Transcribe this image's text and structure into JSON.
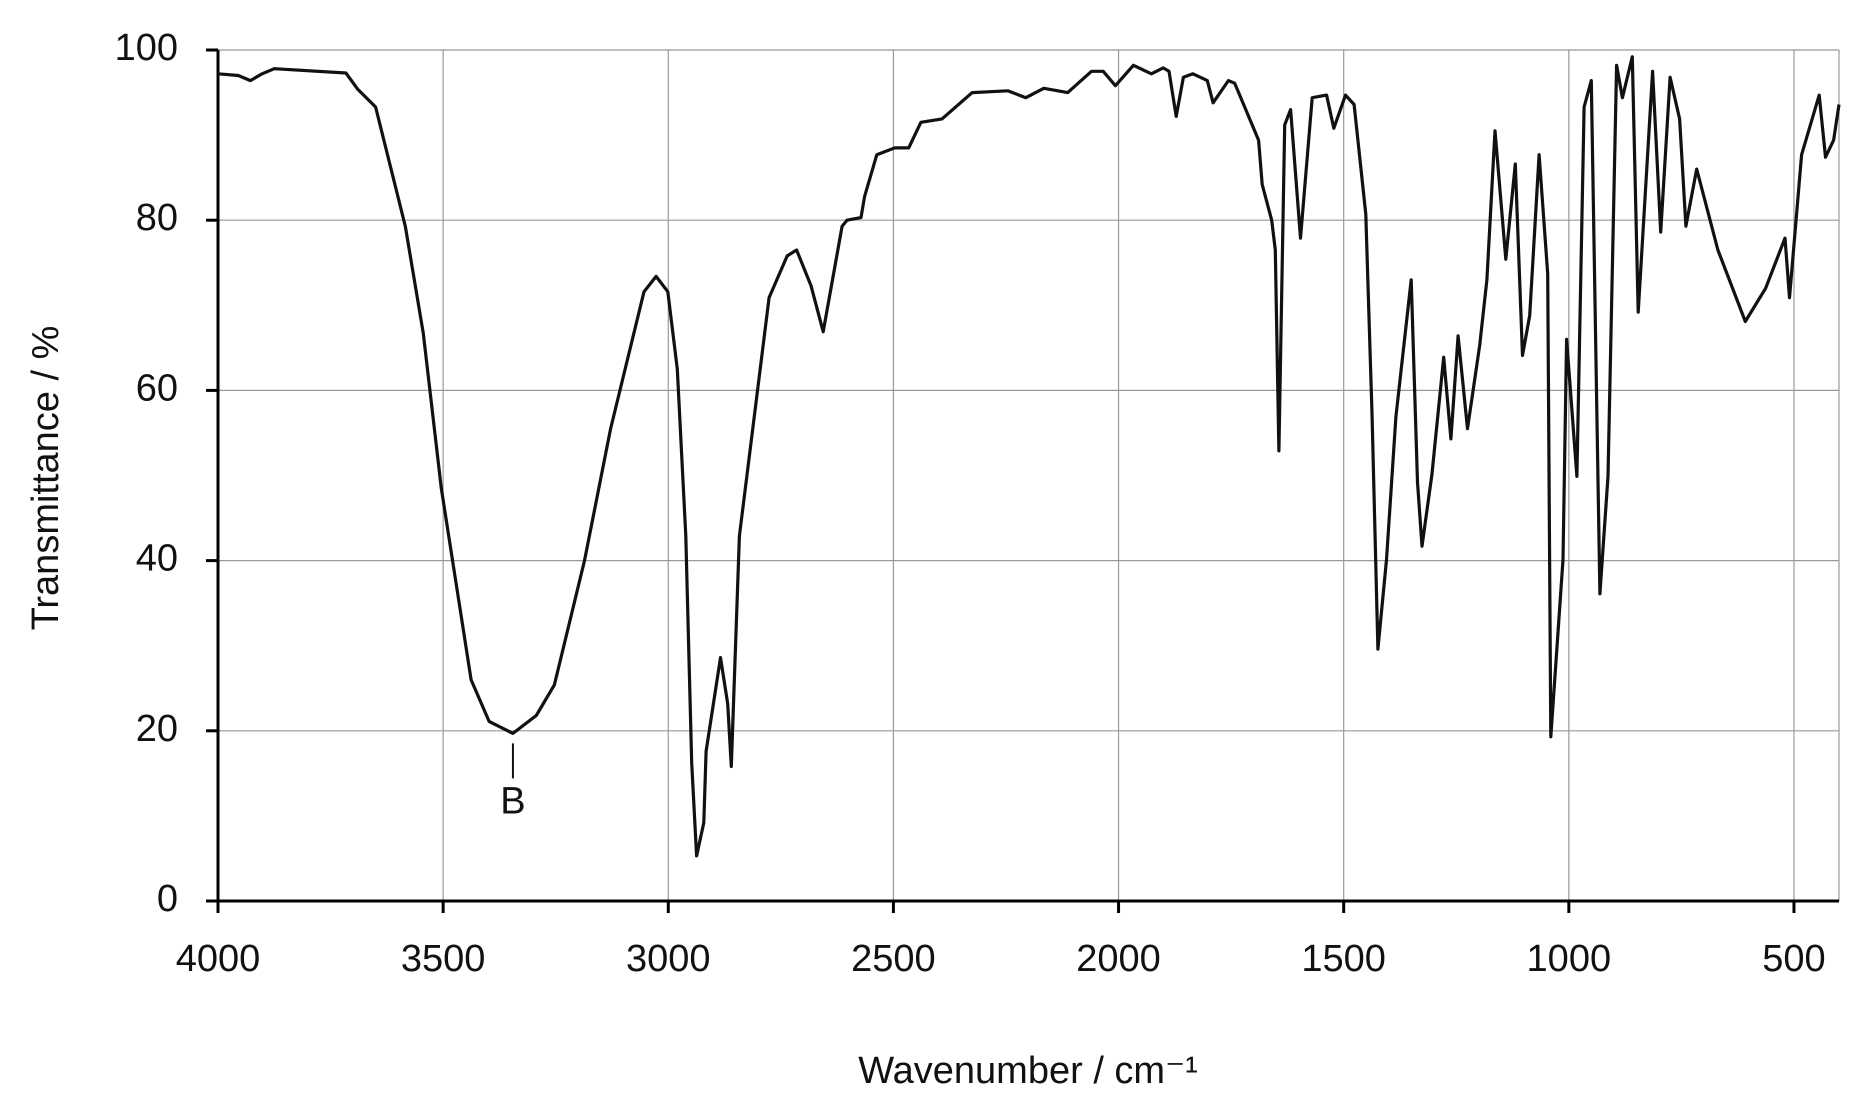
{
  "chart_data": {
    "type": "line",
    "x_label": "Wavenumber / cm⁻¹",
    "y_label": "Transmittance / %",
    "xlim": [
      4000,
      400
    ],
    "ylim": [
      0,
      100
    ],
    "xticks": [
      4000,
      3500,
      3000,
      2500,
      2000,
      1500,
      1000,
      500
    ],
    "yticks": [
      0,
      20,
      40,
      60,
      80,
      100
    ],
    "grid": true,
    "annotations": [
      {
        "text": "B",
        "x": 3345,
        "y": 19.7
      }
    ],
    "series": [
      {
        "name": null,
        "color": "#111111",
        "x": [
          4000,
          3955,
          3928,
          3902,
          3875,
          3716,
          3690,
          3650,
          3584,
          3544,
          3504,
          3438,
          3398,
          3345,
          3293,
          3253,
          3186,
          3128,
          3054,
          3027,
          3001,
          2980,
          2961,
          2948,
          2937,
          2921,
          2916,
          2884,
          2868,
          2860,
          2842,
          2776,
          2736,
          2715,
          2683,
          2656,
          2614,
          2603,
          2572,
          2564,
          2537,
          2497,
          2466,
          2439,
          2392,
          2325,
          2246,
          2206,
          2166,
          2113,
          2060,
          2034,
          2007,
          1967,
          1927,
          1901,
          1888,
          1872,
          1856,
          1835,
          1803,
          1790,
          1756,
          1742,
          1689,
          1681,
          1660,
          1652,
          1644,
          1631,
          1618,
          1596,
          1570,
          1538,
          1522,
          1496,
          1477,
          1451,
          1437,
          1424,
          1405,
          1384,
          1350,
          1336,
          1326,
          1304,
          1278,
          1262,
          1246,
          1225,
          1198,
          1182,
          1164,
          1140,
          1119,
          1103,
          1087,
          1066,
          1047,
          1040,
          1013,
          1005,
          982,
          966,
          950,
          931,
          913,
          894,
          881,
          859,
          846,
          814,
          796,
          775,
          754,
          740,
          716,
          669,
          608,
          563,
          520,
          510,
          483,
          444,
          430,
          412,
          400
        ],
        "values": [
          97.2,
          97,
          96.4,
          97.2,
          97.8,
          97.3,
          95.4,
          93.3,
          79.3,
          66.7,
          48.5,
          26,
          21.1,
          19.7,
          21.8,
          25.4,
          40,
          55.5,
          71.6,
          73.4,
          71.6,
          62.5,
          42.9,
          16.2,
          5.3,
          9.2,
          17.6,
          28.6,
          23.2,
          15.8,
          42.9,
          70.9,
          75.8,
          76.5,
          72.3,
          66.9,
          79.3,
          80,
          80.3,
          82.8,
          87.7,
          88.5,
          88.5,
          91.5,
          91.9,
          95,
          95.2,
          94.4,
          95.5,
          95,
          97.5,
          97.5,
          95.8,
          98.2,
          97.2,
          97.9,
          97.5,
          92.2,
          96.8,
          97.2,
          96.4,
          93.8,
          96.4,
          96.1,
          89.4,
          84.2,
          80,
          76.5,
          52.9,
          91.2,
          93,
          77.9,
          94.4,
          94.7,
          90.8,
          94.7,
          93.6,
          80.7,
          56.9,
          29.6,
          40.1,
          56.9,
          73,
          49.2,
          41.7,
          50.1,
          63.9,
          54.3,
          66.4,
          55.5,
          65.3,
          73,
          90.5,
          75.4,
          86.6,
          64.1,
          68.8,
          87.7,
          73.7,
          19.3,
          40.1,
          66,
          49.9,
          93.3,
          96.4,
          36.1,
          49.9,
          98.2,
          94.4,
          99.2,
          69.2,
          97.5,
          78.6,
          96.8,
          91.9,
          79.3,
          86,
          76.5,
          68.1,
          72,
          77.9,
          70.9,
          87.7,
          94.7,
          87.4,
          89.4,
          93.6
        ]
      }
    ]
  }
}
